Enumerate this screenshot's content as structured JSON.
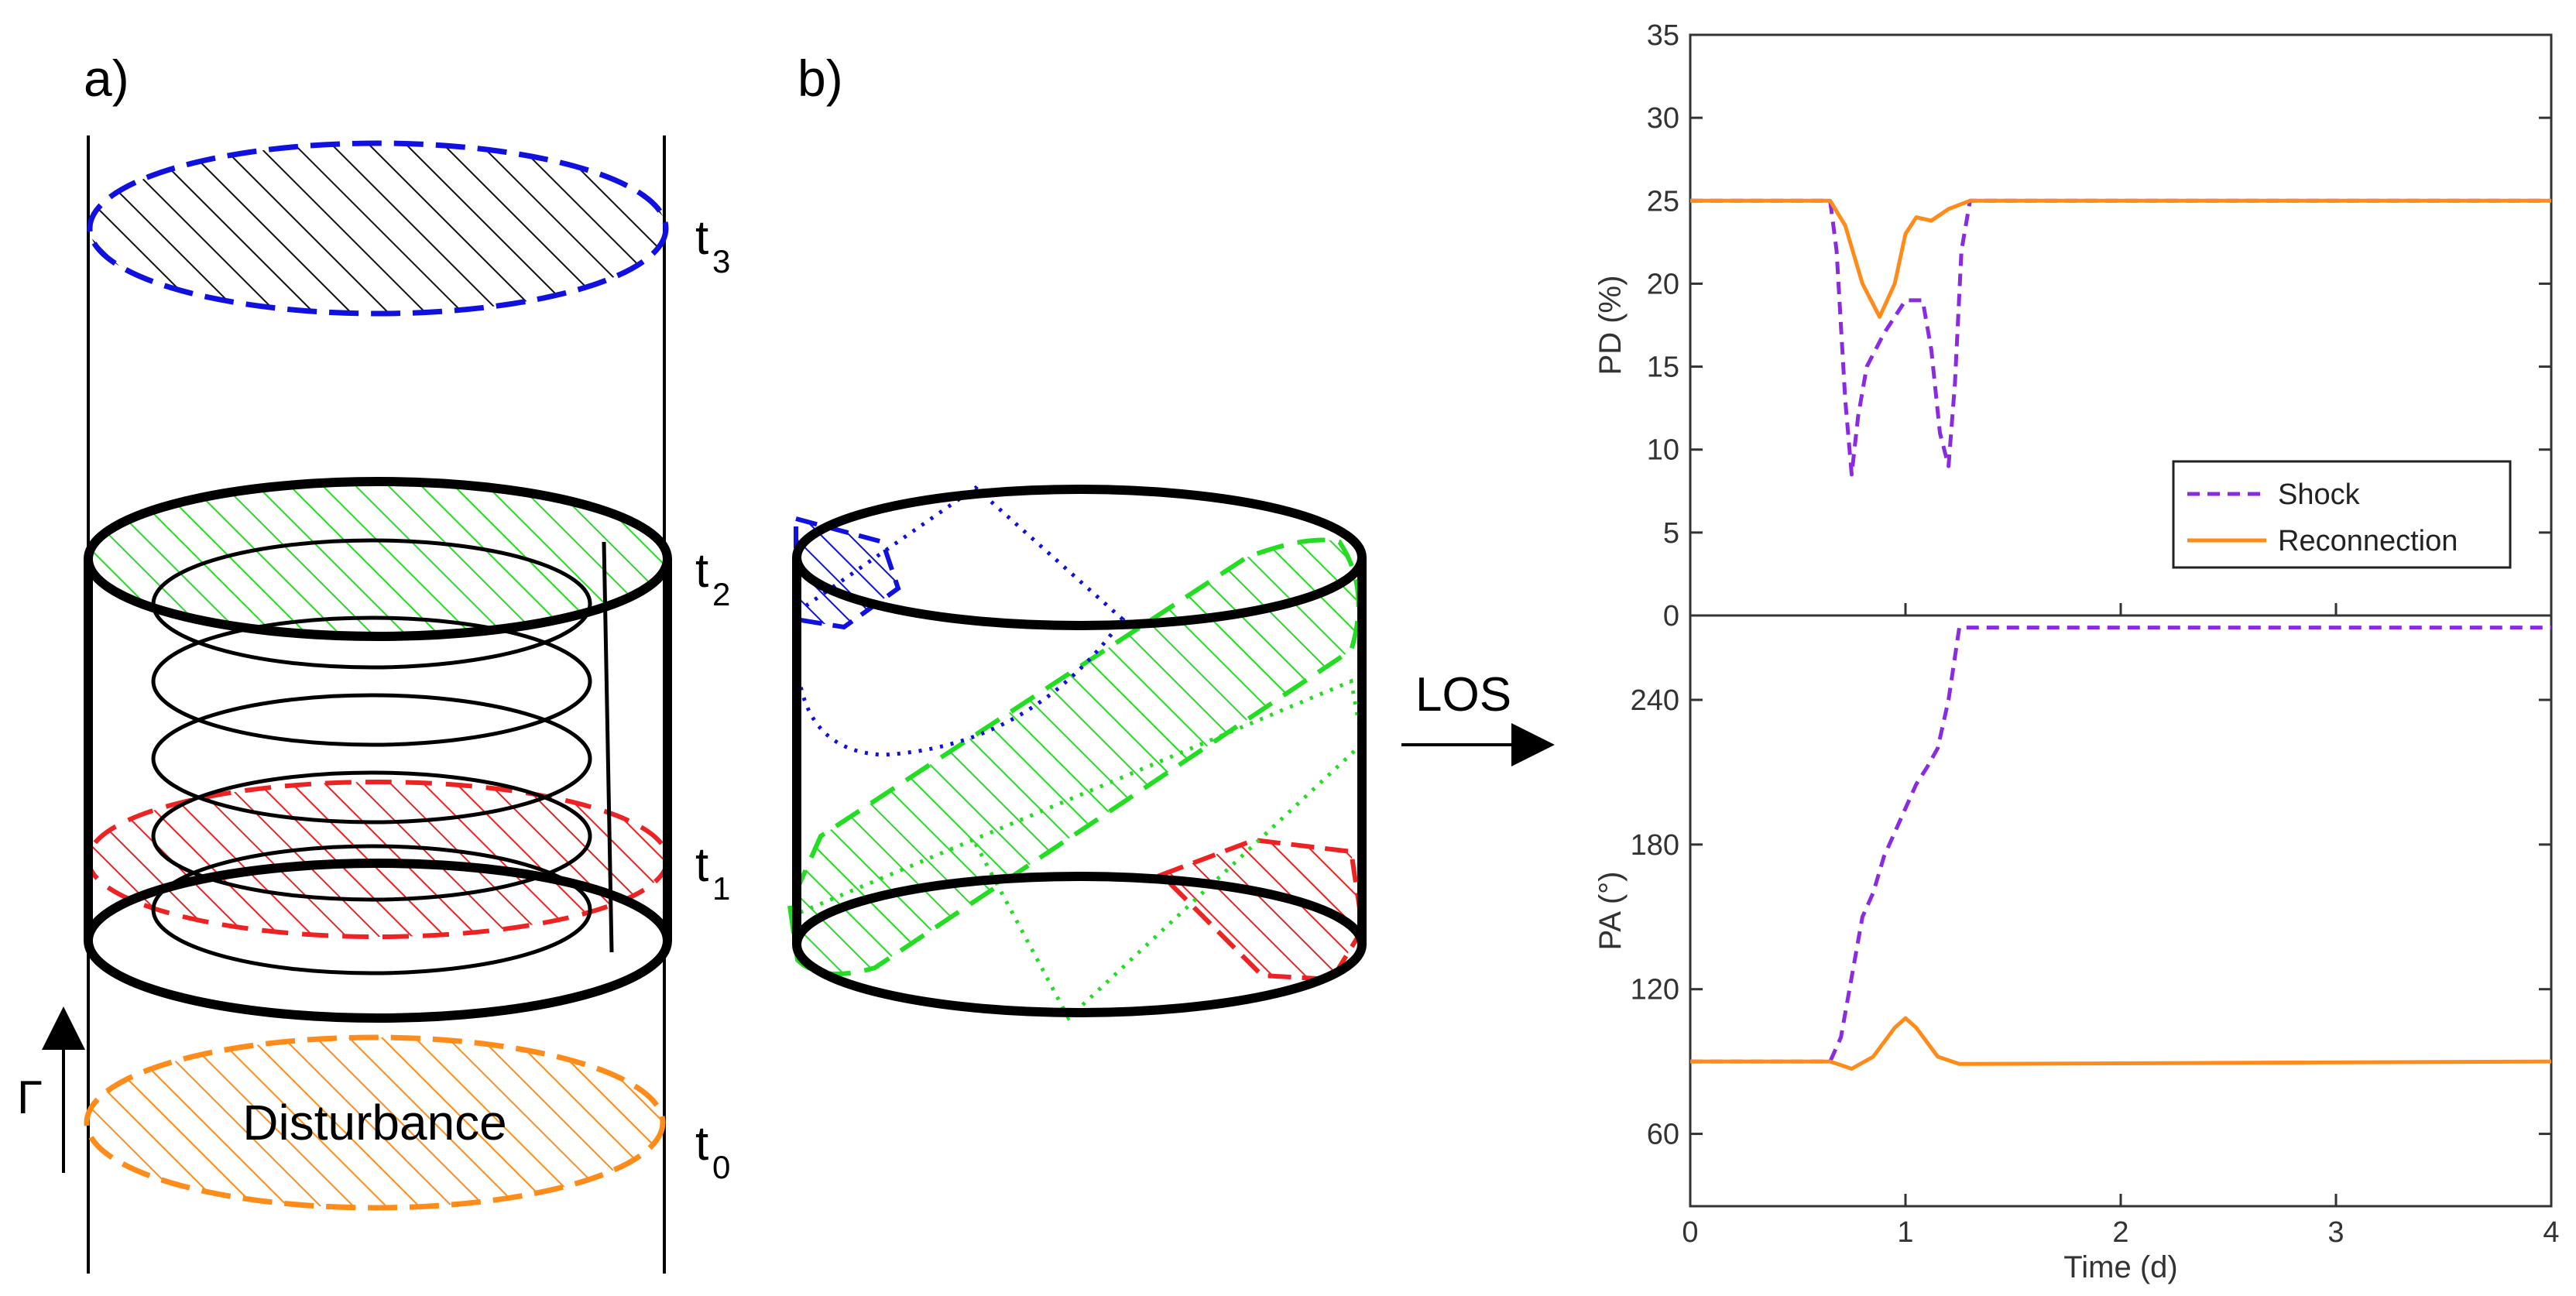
{
  "panels": {
    "a_label": "a)",
    "b_label": "b)"
  },
  "schematic": {
    "times": [
      {
        "main": "t",
        "sub": "3",
        "color": "#1010e0"
      },
      {
        "main": "t",
        "sub": "2",
        "color": "#22dd22"
      },
      {
        "main": "t",
        "sub": "1",
        "color": "#ee2222"
      },
      {
        "main": "t",
        "sub": "0",
        "color": "#ff8c1a"
      }
    ],
    "disturbance_label": "Disturbance",
    "gamma_label": "Γ",
    "los_label": "LOS"
  },
  "chart_data": [
    {
      "type": "line",
      "ylabel": "PD (%)",
      "ylim": [
        0,
        35
      ],
      "yticks": [
        0,
        5,
        10,
        15,
        20,
        25,
        30,
        35
      ],
      "xlim": [
        0,
        4
      ],
      "legend_position": "bottom-right",
      "series": [
        {
          "name": "Shock",
          "style": "dashed",
          "color": "#8a2be2",
          "x": [
            0,
            0.65,
            0.68,
            0.72,
            0.75,
            0.78,
            0.82,
            0.9,
            1.0,
            1.08,
            1.12,
            1.16,
            1.2,
            1.23,
            1.26,
            1.3,
            4
          ],
          "y": [
            25,
            25,
            22,
            13,
            8.5,
            12,
            15,
            17,
            19,
            19,
            16,
            11,
            9,
            14,
            22,
            25,
            25
          ]
        },
        {
          "name": "Reconnection",
          "style": "solid",
          "color": "#ff8c1a",
          "x": [
            0,
            0.65,
            0.72,
            0.8,
            0.88,
            0.95,
            1.0,
            1.05,
            1.12,
            1.2,
            1.3,
            4
          ],
          "y": [
            25,
            25,
            23.5,
            20,
            18,
            20,
            23,
            24,
            23.8,
            24.5,
            25,
            25
          ]
        }
      ]
    },
    {
      "type": "line",
      "xlabel": "Time (d)",
      "ylabel": "PA (°)",
      "ylim": [
        30,
        275
      ],
      "yticks": [
        60,
        120,
        180,
        240
      ],
      "xlim": [
        0,
        4
      ],
      "xticks": [
        0,
        1,
        2,
        3,
        4
      ],
      "series": [
        {
          "name": "Shock",
          "style": "dashed",
          "color": "#8a2be2",
          "x": [
            0,
            0.65,
            0.7,
            0.75,
            0.8,
            0.85,
            0.9,
            0.95,
            1.0,
            1.05,
            1.1,
            1.15,
            1.2,
            1.25,
            1.3,
            4
          ],
          "y": [
            90,
            90,
            100,
            125,
            150,
            160,
            175,
            185,
            195,
            205,
            212,
            220,
            240,
            270,
            270,
            270
          ]
        },
        {
          "name": "Reconnection",
          "style": "solid",
          "color": "#ff8c1a",
          "x": [
            0,
            0.65,
            0.75,
            0.85,
            0.95,
            1.0,
            1.05,
            1.15,
            1.25,
            4
          ],
          "y": [
            90,
            90,
            87,
            92,
            104,
            108,
            104,
            92,
            89,
            90
          ]
        }
      ]
    }
  ]
}
